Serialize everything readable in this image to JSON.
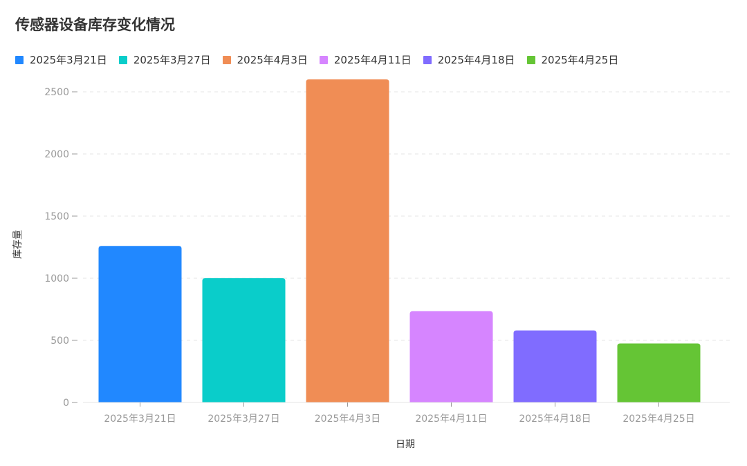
{
  "chart_data": {
    "type": "bar",
    "title": "传感器设备库存变化情况",
    "xlabel": "日期",
    "ylabel": "库存量",
    "categories": [
      "2025年3月21日",
      "2025年3月27日",
      "2025年4月3日",
      "2025年4月11日",
      "2025年4月18日",
      "2025年4月25日"
    ],
    "values": [
      1260,
      1000,
      2600,
      735,
      580,
      475
    ],
    "colors": [
      "#2188ff",
      "#0acdca",
      "#f08d55",
      "#d685ff",
      "#806cff",
      "#65c535"
    ],
    "ylim": [
      0,
      2600
    ],
    "yticks": [
      0,
      500,
      1000,
      1500,
      2000,
      2500
    ],
    "grid": true,
    "legend_position": "top-left"
  }
}
